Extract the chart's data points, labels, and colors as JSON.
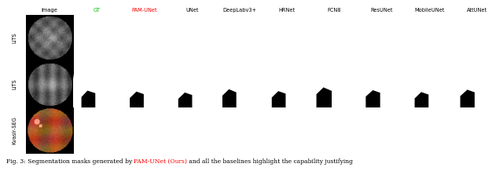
{
  "col_headers": [
    "Image",
    "GT",
    "PAM-UNet",
    "UNet",
    "DeepLabv3+",
    "HRNet",
    "FCN8",
    "ResUNet",
    "MobileUNet",
    "AttUNet"
  ],
  "col_header_colors": [
    "#000000",
    "#00bb00",
    "#ff0000",
    "#000000",
    "#000000",
    "#000000",
    "#000000",
    "#000000",
    "#000000",
    "#000000"
  ],
  "row_labels": [
    "LiTS",
    "LiTS",
    "Kvasir-SEG"
  ],
  "caption_prefix": "Fig. 3: Segmentation masks generated by ",
  "caption_highlight": "PAM-UNet (Ours)",
  "caption_suffix": " and all the baselines highlight the capability justifying",
  "n_cols": 10,
  "n_rows": 3
}
